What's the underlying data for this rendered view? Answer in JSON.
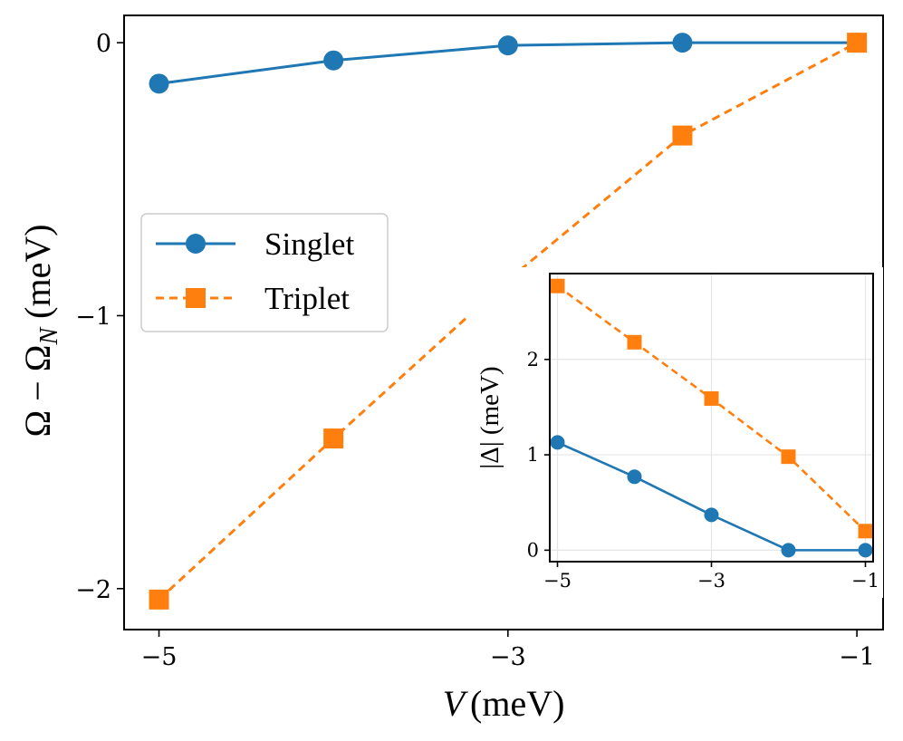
{
  "chart_data": [
    {
      "type": "line",
      "title": "",
      "xlabel_italic": "V",
      "xlabel_unit": "(meV)",
      "ylabel_parts": [
        "Ω − Ω",
        "N",
        " (meV)"
      ],
      "xlim": [
        -5.2,
        -0.85
      ],
      "ylim": [
        -2.15,
        0.1
      ],
      "xticks": [
        -5,
        -3,
        -1
      ],
      "xtick_labels": [
        "−5",
        "−3",
        "−1"
      ],
      "yticks": [
        0,
        -1,
        -2
      ],
      "ytick_labels": [
        "0",
        "−1",
        "−2"
      ],
      "grid": false,
      "legend": {
        "placement": "center-left",
        "entries": [
          "Singlet",
          "Triplet"
        ]
      },
      "series": [
        {
          "name": "Singlet",
          "color": "#1f77b4",
          "marker": "circle",
          "linestyle": "solid",
          "x": [
            -5,
            -4,
            -3,
            -2,
            -1
          ],
          "y": [
            -0.15,
            -0.065,
            -0.01,
            0.0,
            0.0
          ]
        },
        {
          "name": "Triplet",
          "color": "#ff7f0e",
          "marker": "square",
          "linestyle": "dashed",
          "x": [
            -5,
            -4,
            -3,
            -2,
            -1
          ],
          "y": [
            -2.04,
            -1.45,
            -0.87,
            -0.34,
            0.0
          ]
        }
      ]
    },
    {
      "type": "line",
      "title": "",
      "ylabel": "|Δ| (meV)",
      "xlim": [
        -5.1,
        -0.9
      ],
      "ylim": [
        -0.12,
        2.9
      ],
      "xticks": [
        -5,
        -3,
        -1
      ],
      "xtick_labels": [
        "−5",
        "−3",
        "−1"
      ],
      "yticks": [
        0,
        1,
        2
      ],
      "ytick_labels": [
        "0",
        "1",
        "2"
      ],
      "grid": true,
      "series": [
        {
          "name": "Singlet",
          "color": "#1f77b4",
          "marker": "circle",
          "linestyle": "solid",
          "x": [
            -5,
            -4,
            -3,
            -2,
            -1
          ],
          "y": [
            1.13,
            0.77,
            0.37,
            0.0,
            0.0
          ]
        },
        {
          "name": "Triplet",
          "color": "#ff7f0e",
          "marker": "square",
          "linestyle": "dashed",
          "x": [
            -5,
            -4,
            -3,
            -2,
            -1
          ],
          "y": [
            2.77,
            2.18,
            1.59,
            0.98,
            0.2
          ]
        }
      ]
    }
  ]
}
